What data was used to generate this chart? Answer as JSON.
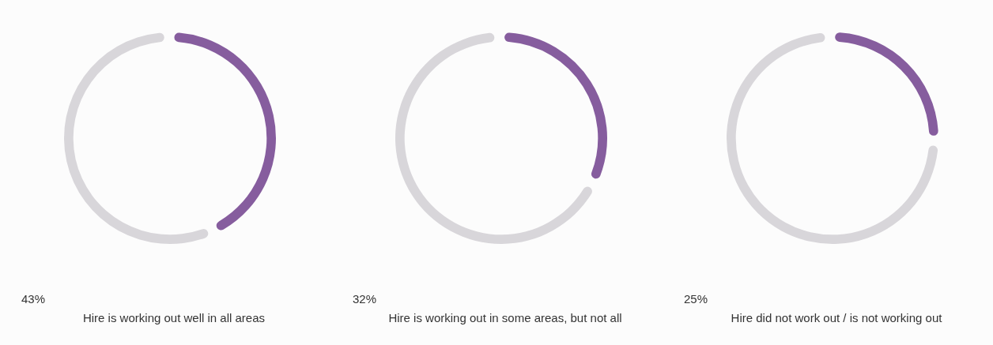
{
  "chart_data": [
    {
      "type": "donut",
      "categories": [
        null,
        null
      ],
      "values": [
        43,
        57
      ],
      "colors": [
        "#865d9e",
        "#d8d6da"
      ],
      "annotations": [
        "43%"
      ],
      "xlabel": "Hire is working out well in all areas",
      "legend": false
    },
    {
      "type": "donut",
      "categories": [
        null,
        null
      ],
      "values": [
        32,
        68
      ],
      "colors": [
        "#865d9e",
        "#d8d6da"
      ],
      "annotations": [
        "32%"
      ],
      "xlabel": "Hire is working out in some areas, but not all",
      "legend": false
    },
    {
      "type": "donut",
      "categories": [
        null,
        null
      ],
      "values": [
        25,
        75
      ],
      "colors": [
        "#865d9e",
        "#d8d6da"
      ],
      "annotations": [
        "25%"
      ],
      "xlabel": "Hire did not work out / is not working out",
      "legend": false
    }
  ]
}
